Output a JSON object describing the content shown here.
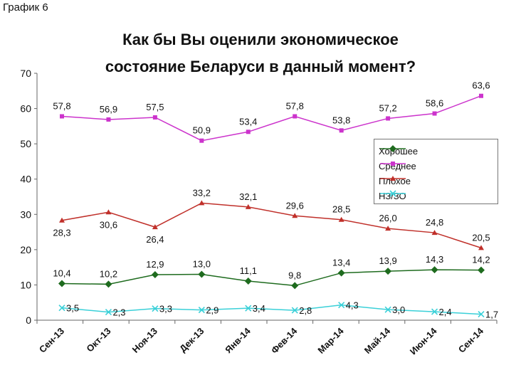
{
  "figure_label": "График 6",
  "title_lines": [
    "Как бы Вы оценили экономическое",
    "состояние Беларуси в данный момент?"
  ],
  "chart_data": {
    "type": "line",
    "title": "Как бы Вы оценили экономическое состояние Беларуси в данный момент?",
    "categories": [
      "Сен-13",
      "Окт-13",
      "Ноя-13",
      "Дек-13",
      "Янв-14",
      "Фев-14",
      "Мар-14",
      "Май-14",
      "Июн-14",
      "Сен-14"
    ],
    "ylim": [
      0,
      70
    ],
    "yticks": [
      0,
      10,
      20,
      30,
      40,
      50,
      60,
      70
    ],
    "grid": false,
    "legend_position": "right",
    "series": [
      {
        "name": "Хорошее",
        "color": "#1e6b1e",
        "marker": "diamond",
        "values": [
          10.4,
          10.2,
          12.9,
          13.0,
          11.1,
          9.8,
          13.4,
          13.9,
          14.3,
          14.2
        ],
        "labels": [
          "10,4",
          "10,2",
          "12,9",
          "13,0",
          "11,1",
          "9,8",
          "13,4",
          "13,9",
          "14,3",
          "14,2"
        ]
      },
      {
        "name": "Среднее",
        "color": "#cc33cc",
        "marker": "square",
        "values": [
          57.8,
          56.9,
          57.5,
          50.9,
          53.4,
          57.8,
          53.8,
          57.2,
          58.6,
          63.6
        ],
        "labels": [
          "57,8",
          "56,9",
          "57,5",
          "50,9",
          "53,4",
          "57,8",
          "53,8",
          "57,2",
          "58,6",
          "63,6"
        ]
      },
      {
        "name": "Плохое",
        "color": "#c0302a",
        "marker": "triangle",
        "values": [
          28.3,
          30.6,
          26.4,
          33.2,
          32.1,
          29.6,
          28.5,
          26.0,
          24.8,
          20.5
        ],
        "labels": [
          "28,3",
          "30,6",
          "26,4",
          "33,2",
          "32,1",
          "29,6",
          "28,5",
          "26,0",
          "24,8",
          "20,5"
        ]
      },
      {
        "name": "НЗ/ЗО",
        "color": "#3ad0d8",
        "marker": "x",
        "values": [
          3.5,
          2.3,
          3.3,
          2.9,
          3.4,
          2.8,
          4.3,
          3.0,
          2.4,
          1.7
        ],
        "labels": [
          "3,5",
          "2,3",
          "3,3",
          "2,9",
          "3,4",
          "2,8",
          "4,3",
          "3,0",
          "2,4",
          "1,7"
        ]
      }
    ]
  }
}
